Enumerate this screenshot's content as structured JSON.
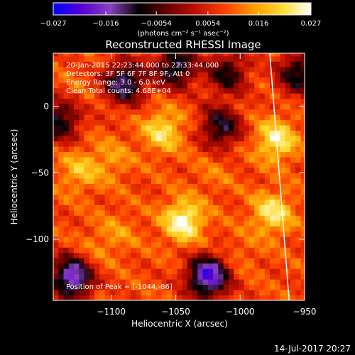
{
  "colorbar": {
    "ticks": [
      "-0.027",
      "-0.016",
      "-0.0054",
      "0.0054",
      "0.016",
      "0.027"
    ],
    "tick_values": [
      -0.027,
      -0.016,
      -0.0054,
      0.0054,
      0.016,
      0.027
    ],
    "range": [
      -0.027,
      0.027
    ],
    "unit_label": "(photons cm⁻² s⁻¹ asec⁻²)",
    "colors": [
      "#0000ff",
      "#5a00d2",
      "#8a40c0",
      "#000000",
      "#6a0000",
      "#c01000",
      "#ff4000",
      "#ff9a00",
      "#ffdc30",
      "#ffffff"
    ]
  },
  "chart_data": {
    "type": "heatmap",
    "title": "Reconstructed RHESSI Image",
    "xlabel": "Heliocentric X (arcsec)",
    "ylabel": "Heliocentric Y (arcsec)",
    "xlim": [
      -1145,
      -950
    ],
    "ylim": [
      -146,
      40
    ],
    "x_ticks": [
      {
        "value": -1100,
        "label": "−1100"
      },
      {
        "value": -1050,
        "label": "−1050"
      },
      {
        "value": -1000,
        "label": "−1000"
      },
      {
        "value": -950,
        "label": "−950"
      }
    ],
    "y_ticks": [
      {
        "value": 0,
        "label": "0"
      },
      {
        "value": -50,
        "label": "−50"
      },
      {
        "value": -100,
        "label": "−100"
      }
    ],
    "info_lines": [
      "20-Jan-2015 22:23:44.000 to 22:33:44.000",
      "Detectors: 3F 5F 6F 7F 8F 9F, Att 0",
      "Energy Range: 3.0 - 6.0 keV",
      "Clean     Total counts: 4.68E+04"
    ],
    "peak_label": "Position of Peak = [-1044,-86]",
    "peak": {
      "x": -1044,
      "y": -86
    },
    "limb_line": [
      {
        "x": -977,
        "y": 40
      },
      {
        "x": -962,
        "y": -146
      }
    ],
    "sources": [
      {
        "x": -1044,
        "y": -86,
        "intensity": 0.027
      },
      {
        "x": -1060,
        "y": -18,
        "intensity": 0.022
      },
      {
        "x": -1125,
        "y": -48,
        "intensity": 0.018
      },
      {
        "x": -1100,
        "y": -40,
        "intensity": 0.015
      },
      {
        "x": -972,
        "y": -25,
        "intensity": 0.024
      },
      {
        "x": -975,
        "y": -80,
        "intensity": 0.023
      },
      {
        "x": -1095,
        "y": -95,
        "intensity": 0.014
      },
      {
        "x": -1020,
        "y": -50,
        "intensity": 0.012
      },
      {
        "x": -1115,
        "y": -110,
        "intensity": 0.013
      },
      {
        "x": -1000,
        "y": -110,
        "intensity": 0.012
      },
      {
        "x": -1005,
        "y": 5,
        "intensity": 0.01
      },
      {
        "x": -1130,
        "y": 10,
        "intensity": 0.011
      }
    ],
    "negatives": [
      {
        "x": -1130,
        "y": -128,
        "intensity": -0.02
      },
      {
        "x": -1025,
        "y": -128,
        "intensity": -0.022
      },
      {
        "x": -1090,
        "y": 18,
        "intensity": -0.014
      },
      {
        "x": -1050,
        "y": 30,
        "intensity": -0.012
      },
      {
        "x": -1015,
        "y": -15,
        "intensity": -0.01
      },
      {
        "x": -1010,
        "y": 25,
        "intensity": -0.008
      },
      {
        "x": -955,
        "y": 25,
        "intensity": -0.01
      },
      {
        "x": -1140,
        "y": -10,
        "intensity": -0.01
      }
    ]
  },
  "footer": {
    "date": "14-Jul-2017 20:27"
  }
}
